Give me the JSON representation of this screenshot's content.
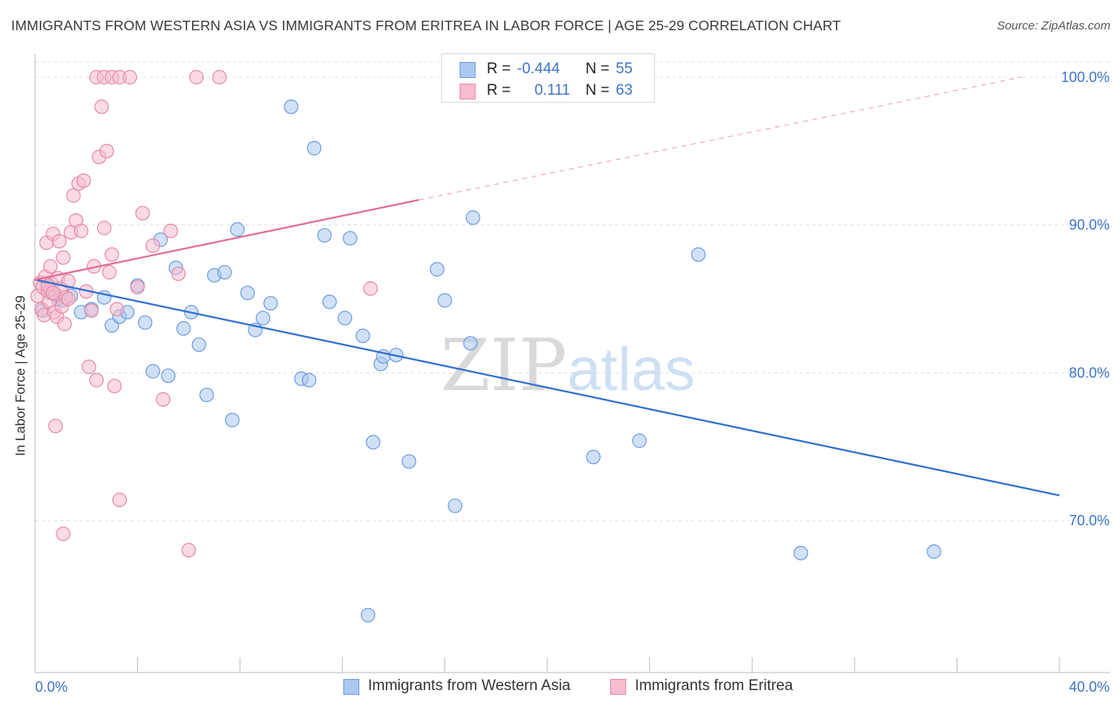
{
  "title": "IMMIGRANTS FROM WESTERN ASIA VS IMMIGRANTS FROM ERITREA IN LABOR FORCE | AGE 25-29 CORRELATION CHART",
  "source": "Source: ZipAtlas.com",
  "watermark": {
    "part1": "ZIP",
    "part2": "atlas"
  },
  "legend": {
    "r_label": "R =",
    "n_label": "N =",
    "series1": {
      "r": "-0.444",
      "n": "55"
    },
    "series2": {
      "r": "0.111",
      "n": "63"
    }
  },
  "colors": {
    "blue_fill": "#aac8f0",
    "blue_stroke": "#6e9be0",
    "blue_line": "#2e6fce",
    "pink_fill": "#f7bccd",
    "pink_stroke": "#e58aa6",
    "pink_line": "#e06d94",
    "axis_text": "#3f74c6",
    "grid": "#dddddd"
  },
  "chart_data": {
    "type": "scatter",
    "title": "IMMIGRANTS FROM WESTERN ASIA VS IMMIGRANTS FROM ERITREA IN LABOR FORCE | AGE 25-29 CORRELATION CHART",
    "xlabel": "",
    "ylabel": "In Labor Force | Age 25-29",
    "xlim": [
      0,
      40
    ],
    "ylim": [
      60,
      100
    ],
    "x_tick_labels": [
      "0.0%",
      "40.0%"
    ],
    "y_ticks": [
      70,
      80,
      90,
      100
    ],
    "y_tick_labels": [
      "70.0%",
      "80.0%",
      "90.0%",
      "100.0%"
    ],
    "legend_position": "bottom",
    "series": [
      {
        "name": "Immigrants from Western Asia",
        "color": "blue",
        "r": -0.444,
        "n": 55,
        "trend": {
          "x0": 0,
          "y0": 86.3,
          "x1": 40,
          "y1": 71.7,
          "dashed_to": null
        },
        "points": [
          [
            0.3,
            84.2
          ],
          [
            0.6,
            85.4
          ],
          [
            0.9,
            85.0
          ],
          [
            1.1,
            84.9
          ],
          [
            1.4,
            85.2
          ],
          [
            1.8,
            84.1
          ],
          [
            2.2,
            84.3
          ],
          [
            2.7,
            85.1
          ],
          [
            3.0,
            83.2
          ],
          [
            3.3,
            83.8
          ],
          [
            3.6,
            84.1
          ],
          [
            4.0,
            85.9
          ],
          [
            4.3,
            83.4
          ],
          [
            4.6,
            80.1
          ],
          [
            4.9,
            89.0
          ],
          [
            5.2,
            79.8
          ],
          [
            5.5,
            87.1
          ],
          [
            5.8,
            83.0
          ],
          [
            6.1,
            84.1
          ],
          [
            6.4,
            81.9
          ],
          [
            6.7,
            78.5
          ],
          [
            7.0,
            86.6
          ],
          [
            7.4,
            86.8
          ],
          [
            7.7,
            76.8
          ],
          [
            7.9,
            89.7
          ],
          [
            8.3,
            85.4
          ],
          [
            8.6,
            82.9
          ],
          [
            8.9,
            83.7
          ],
          [
            9.2,
            84.7
          ],
          [
            10.0,
            98.0
          ],
          [
            10.4,
            79.6
          ],
          [
            10.7,
            79.5
          ],
          [
            10.9,
            95.2
          ],
          [
            11.3,
            89.3
          ],
          [
            11.5,
            84.8
          ],
          [
            12.1,
            83.7
          ],
          [
            12.3,
            89.1
          ],
          [
            12.8,
            82.5
          ],
          [
            13.2,
            75.3
          ],
          [
            13.5,
            80.6
          ],
          [
            13.6,
            81.1
          ],
          [
            14.1,
            81.2
          ],
          [
            14.6,
            74.0
          ],
          [
            15.7,
            87.0
          ],
          [
            16.0,
            84.9
          ],
          [
            16.4,
            71.0
          ],
          [
            17.0,
            82.0
          ],
          [
            17.1,
            90.5
          ],
          [
            21.8,
            74.3
          ],
          [
            23.6,
            75.4
          ],
          [
            25.9,
            88.0
          ],
          [
            29.9,
            67.8
          ],
          [
            35.1,
            67.9
          ],
          [
            13.0,
            63.6
          ],
          [
            0.6,
            85.6
          ]
        ]
      },
      {
        "name": "Immigrants from Eritrea",
        "color": "pink",
        "r": 0.111,
        "n": 63,
        "trend": {
          "x0": 0,
          "y0": 86.3,
          "x1": 15.0,
          "y1": 91.7,
          "dashed_to": [
            38.5,
            100.0
          ]
        },
        "points": [
          [
            0.1,
            85.2
          ],
          [
            0.2,
            86.1
          ],
          [
            0.25,
            84.3
          ],
          [
            0.3,
            85.8
          ],
          [
            0.35,
            83.9
          ],
          [
            0.4,
            86.5
          ],
          [
            0.45,
            88.8
          ],
          [
            0.5,
            85.5
          ],
          [
            0.55,
            84.8
          ],
          [
            0.6,
            87.2
          ],
          [
            0.65,
            86.0
          ],
          [
            0.7,
            89.4
          ],
          [
            0.75,
            84.1
          ],
          [
            0.8,
            85.3
          ],
          [
            0.85,
            83.8
          ],
          [
            0.9,
            86.4
          ],
          [
            0.95,
            88.9
          ],
          [
            1.0,
            85.7
          ],
          [
            1.05,
            84.5
          ],
          [
            1.1,
            87.8
          ],
          [
            1.15,
            83.3
          ],
          [
            1.2,
            85.1
          ],
          [
            1.3,
            86.2
          ],
          [
            1.4,
            89.5
          ],
          [
            1.5,
            92.0
          ],
          [
            1.6,
            90.3
          ],
          [
            1.7,
            92.8
          ],
          [
            1.8,
            89.6
          ],
          [
            1.9,
            93.0
          ],
          [
            2.0,
            85.5
          ],
          [
            2.1,
            80.4
          ],
          [
            2.2,
            84.2
          ],
          [
            2.3,
            87.2
          ],
          [
            2.4,
            79.5
          ],
          [
            2.5,
            94.6
          ],
          [
            2.6,
            98.0
          ],
          [
            2.7,
            89.8
          ],
          [
            2.8,
            95.0
          ],
          [
            2.9,
            86.8
          ],
          [
            3.0,
            88.0
          ],
          [
            3.1,
            79.1
          ],
          [
            3.2,
            84.3
          ],
          [
            3.3,
            71.4
          ],
          [
            0.8,
            76.4
          ],
          [
            1.1,
            69.1
          ],
          [
            2.4,
            100.0
          ],
          [
            2.7,
            100.0
          ],
          [
            3.0,
            100.0
          ],
          [
            3.3,
            100.0
          ],
          [
            3.7,
            100.0
          ],
          [
            4.0,
            85.8
          ],
          [
            4.2,
            90.8
          ],
          [
            4.6,
            88.6
          ],
          [
            5.0,
            78.2
          ],
          [
            5.3,
            89.6
          ],
          [
            5.6,
            86.7
          ],
          [
            6.3,
            100.0
          ],
          [
            6.0,
            68.0
          ],
          [
            7.2,
            100.0
          ],
          [
            13.1,
            85.7
          ],
          [
            1.3,
            85.0
          ],
          [
            0.5,
            85.9
          ],
          [
            0.7,
            85.4
          ]
        ]
      }
    ]
  }
}
